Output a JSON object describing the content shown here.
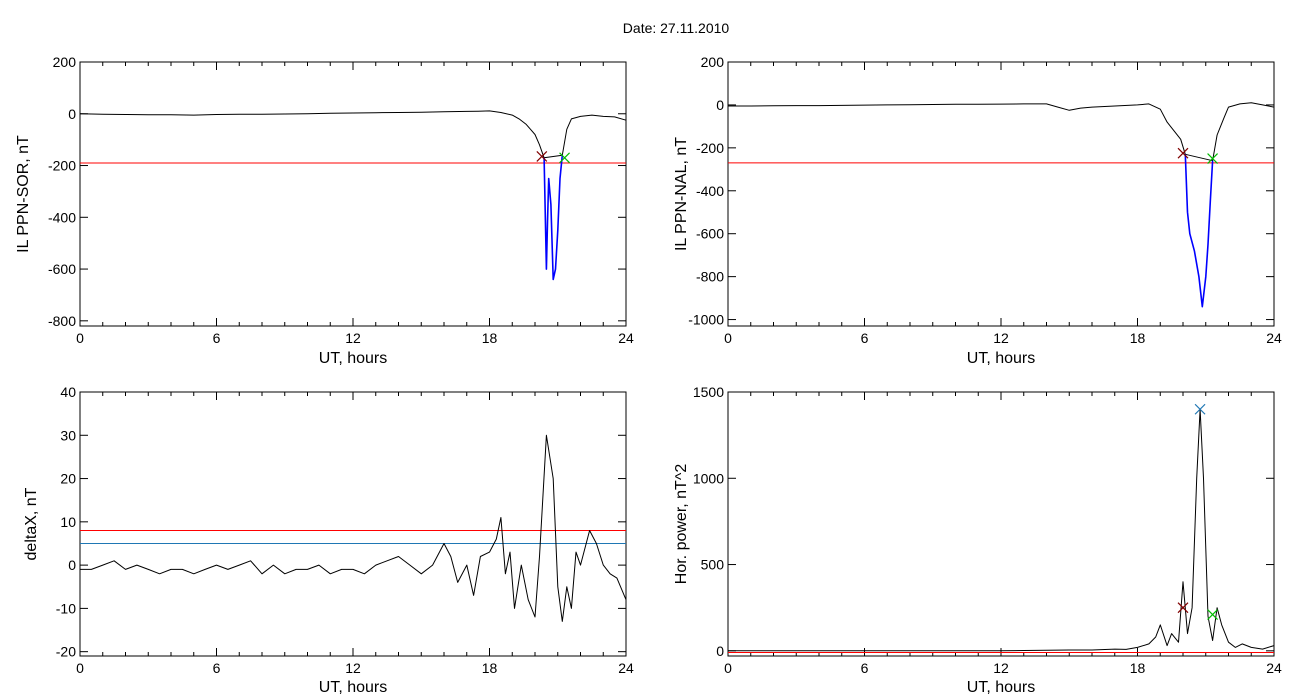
{
  "figure": {
    "title": "Date:  27.11.2010"
  },
  "chart_data": [
    {
      "type": "line",
      "ylabel": "IL PPN-SOR, nT",
      "xlabel": "UT, hours",
      "xlim": [
        0,
        24
      ],
      "ylim": [
        -820,
        200
      ],
      "xticks": [
        0,
        6,
        12,
        18,
        24
      ],
      "yticks": [
        -800,
        -600,
        -400,
        -200,
        0,
        200
      ],
      "ytick_labels": [
        "-800",
        "-600",
        "-400",
        "-200",
        "0",
        "200"
      ],
      "hlines": [
        {
          "y": -190,
          "color": "#ff0000"
        }
      ],
      "series": [
        {
          "color": "#000000",
          "x": [
            0,
            1,
            2,
            3,
            4,
            5,
            6,
            7,
            8,
            9,
            10,
            11,
            12,
            13,
            14,
            15,
            16,
            17,
            17.5,
            18,
            18.5,
            19,
            19.3,
            19.6,
            19.8,
            20.0,
            20.2,
            20.4,
            21.2,
            21.4,
            21.6,
            22,
            22.5,
            23,
            23.5,
            24
          ],
          "y": [
            0,
            -2,
            -3,
            -4,
            -4,
            -5,
            -3,
            -2,
            -2,
            -1,
            0,
            2,
            3,
            4,
            5,
            6,
            8,
            9,
            10,
            11,
            5,
            -5,
            -20,
            -40,
            -60,
            -80,
            -120,
            -170,
            -160,
            -60,
            -20,
            -10,
            -5,
            -10,
            -12,
            -25
          ]
        },
        {
          "color": "#0000ff",
          "x": [
            20.4,
            20.5,
            20.55,
            20.6,
            20.7,
            20.8,
            20.9,
            21.0,
            21.1,
            21.2
          ],
          "y": [
            -170,
            -600,
            -420,
            -250,
            -350,
            -640,
            -600,
            -450,
            -250,
            -160
          ]
        }
      ],
      "markers": [
        {
          "x": 20.3,
          "y": -165,
          "color": "#800000",
          "symbol": "x"
        },
        {
          "x": 21.3,
          "y": -170,
          "color": "#00bb00",
          "symbol": "x"
        }
      ]
    },
    {
      "type": "line",
      "ylabel": "IL PPN-NAL, nT",
      "xlabel": "UT, hours",
      "xlim": [
        0,
        24
      ],
      "ylim": [
        -1030,
        200
      ],
      "xticks": [
        0,
        6,
        12,
        18,
        24
      ],
      "yticks": [
        -1000,
        -800,
        -600,
        -400,
        -200,
        0,
        200
      ],
      "ytick_labels": [
        "-1000",
        "-800",
        "-600",
        "-400",
        "-200",
        "0",
        "200"
      ],
      "hlines": [
        {
          "y": -270,
          "color": "#ff0000"
        }
      ],
      "series": [
        {
          "color": "#000000",
          "x": [
            0,
            1,
            2,
            3,
            4,
            5,
            6,
            7,
            8,
            9,
            10,
            11,
            12,
            13,
            14,
            14.5,
            15,
            15.5,
            16,
            17,
            18,
            18.5,
            19,
            19.3,
            19.6,
            19.9,
            20.1,
            21.3,
            21.5,
            21.8,
            22,
            22.5,
            23,
            23.5,
            24
          ],
          "y": [
            -5,
            -5,
            -4,
            -3,
            -3,
            -2,
            -1,
            0,
            1,
            2,
            3,
            3,
            4,
            5,
            5,
            -10,
            -25,
            -15,
            -10,
            -5,
            0,
            5,
            -20,
            -80,
            -120,
            -160,
            -230,
            -260,
            -140,
            -60,
            -10,
            5,
            10,
            0,
            -10
          ]
        },
        {
          "color": "#0000ff",
          "x": [
            20.1,
            20.2,
            20.3,
            20.5,
            20.7,
            20.85,
            21.0,
            21.1,
            21.2,
            21.3
          ],
          "y": [
            -230,
            -500,
            -600,
            -680,
            -800,
            -940,
            -800,
            -650,
            -450,
            -260
          ]
        }
      ],
      "markers": [
        {
          "x": 20.0,
          "y": -225,
          "color": "#800000",
          "symbol": "x"
        },
        {
          "x": 21.3,
          "y": -250,
          "color": "#00bb00",
          "symbol": "x"
        }
      ]
    },
    {
      "type": "line",
      "ylabel": "deltaX, nT",
      "xlabel": "UT, hours",
      "xlim": [
        0,
        24
      ],
      "ylim": [
        -21,
        40
      ],
      "xticks": [
        0,
        6,
        12,
        18,
        24
      ],
      "yticks": [
        -20,
        -10,
        0,
        10,
        20,
        30,
        40
      ],
      "ytick_labels": [
        "-20",
        "-10",
        "0",
        "10",
        "20",
        "30",
        "40"
      ],
      "hlines": [
        {
          "y": 8,
          "color": "#ff0000"
        },
        {
          "y": 5,
          "color": "#1f77b4"
        }
      ],
      "series": [
        {
          "color": "#000000",
          "x": [
            0,
            0.5,
            1,
            1.5,
            2,
            2.5,
            3,
            3.5,
            4,
            4.5,
            5,
            5.5,
            6,
            6.5,
            7,
            7.5,
            8,
            8.5,
            9,
            9.5,
            10,
            10.5,
            11,
            11.5,
            12,
            12.5,
            13,
            13.5,
            14,
            14.5,
            15,
            15.5,
            16,
            16.3,
            16.6,
            17,
            17.3,
            17.6,
            18,
            18.3,
            18.5,
            18.7,
            18.9,
            19.1,
            19.4,
            19.7,
            20,
            20.2,
            20.5,
            20.8,
            21,
            21.2,
            21.4,
            21.6,
            21.8,
            22,
            22.4,
            22.7,
            23,
            23.3,
            23.6,
            24
          ],
          "y": [
            -1,
            -1,
            0,
            1,
            -1,
            0,
            -1,
            -2,
            -1,
            -1,
            -2,
            -1,
            0,
            -1,
            0,
            1,
            -2,
            0,
            -2,
            -1,
            -1,
            0,
            -2,
            -1,
            -1,
            -2,
            0,
            1,
            2,
            0,
            -2,
            0,
            5,
            2,
            -4,
            0,
            -7,
            2,
            3,
            6,
            11,
            -2,
            3,
            -10,
            0,
            -8,
            -12,
            2,
            30,
            20,
            -5,
            -13,
            -5,
            -10,
            3,
            0,
            8,
            5,
            0,
            -2,
            -3,
            -8
          ]
        }
      ]
    },
    {
      "type": "line",
      "ylabel": "Hor. power, nT^2",
      "xlabel": "UT, hours",
      "xlim": [
        0,
        24
      ],
      "ylim": [
        -30,
        1500
      ],
      "xticks": [
        0,
        6,
        12,
        18,
        24
      ],
      "yticks": [
        0,
        500,
        1000,
        1500
      ],
      "ytick_labels": [
        "0",
        "500",
        "1000",
        "1500"
      ],
      "hlines": [
        {
          "y": -10,
          "color": "#ff0000"
        }
      ],
      "series": [
        {
          "color": "#000000",
          "x": [
            0,
            12,
            13,
            14,
            15,
            16,
            17,
            17.5,
            18,
            18.5,
            18.8,
            19.0,
            19.3,
            19.5,
            19.8,
            20.0,
            20.2,
            20.4,
            20.6,
            20.75,
            20.9,
            21.1,
            21.3,
            21.5,
            21.7,
            22,
            22.3,
            22.6,
            23,
            23.5,
            24
          ],
          "y": [
            0,
            0,
            2,
            3,
            5,
            5,
            10,
            8,
            20,
            40,
            80,
            150,
            30,
            100,
            50,
            400,
            100,
            250,
            1000,
            1400,
            1000,
            200,
            60,
            250,
            150,
            50,
            20,
            40,
            20,
            10,
            30
          ]
        }
      ],
      "markers": [
        {
          "x": 20.75,
          "y": 1400,
          "color": "#1f77b4",
          "symbol": "x"
        },
        {
          "x": 20.0,
          "y": 250,
          "color": "#800000",
          "symbol": "x"
        },
        {
          "x": 21.3,
          "y": 210,
          "color": "#00bb00",
          "symbol": "x"
        }
      ]
    }
  ]
}
